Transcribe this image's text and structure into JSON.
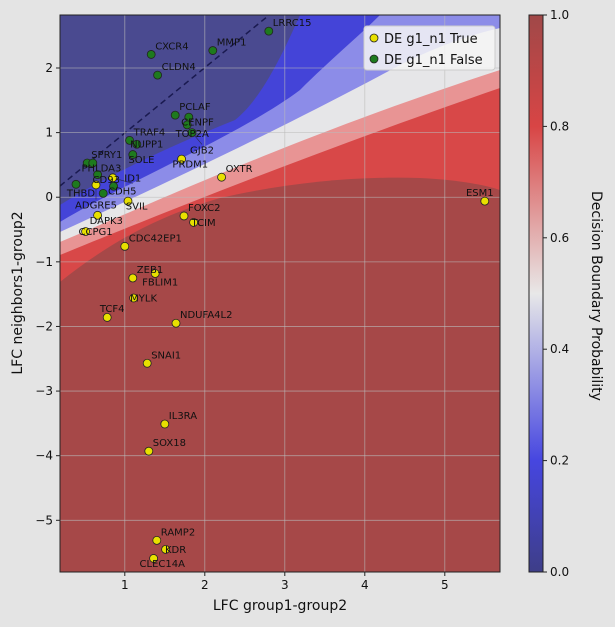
{
  "chart_data": {
    "type": "scatter",
    "xlabel": "LFC group1-group2",
    "ylabel": "LFC neighbors1-group2",
    "xlim": [
      0.19,
      5.69
    ],
    "ylim": [
      -5.8,
      2.82
    ],
    "xticks": [
      1,
      2,
      3,
      4,
      5
    ],
    "yticks": [
      2,
      1,
      0,
      -1,
      -2,
      -3,
      -4,
      -5
    ],
    "grid": true,
    "legend_placement": "top-right",
    "legend": [
      {
        "label": "DE g1_n1 True",
        "color": "#e8e000"
      },
      {
        "label": "DE g1_n1 False",
        "color": "#1e7a1e"
      }
    ],
    "colorbar": {
      "label": "Decision Boundary Probability",
      "range": [
        0.0,
        1.0
      ],
      "ticks": [
        "0.0",
        "0.2",
        "0.4",
        "0.6",
        "0.8",
        "1.0"
      ],
      "colormap": "seismic"
    },
    "points": [
      {
        "label": "LRRC15",
        "x": 2.8,
        "y": 2.57,
        "de": false
      },
      {
        "label": "MMP1",
        "x": 2.1,
        "y": 2.27,
        "de": false
      },
      {
        "label": "CXCR4",
        "x": 1.33,
        "y": 2.21,
        "de": false
      },
      {
        "label": "CLDN4",
        "x": 1.41,
        "y": 1.89,
        "de": false
      },
      {
        "label": "PCLAF",
        "x": 1.63,
        "y": 1.27,
        "de": false
      },
      {
        "label": "CENPF",
        "x": 1.8,
        "y": 1.24,
        "de": false
      },
      {
        "label": "TOP2A",
        "x": 1.78,
        "y": 1.12,
        "de": false
      },
      {
        "label": "GJB2",
        "x": 1.84,
        "y": 1.0,
        "de": false
      },
      {
        "label": "TRAF4",
        "x": 1.06,
        "y": 0.88,
        "de": false
      },
      {
        "label": "NUPP1",
        "x": 1.15,
        "y": 0.82,
        "de": false
      },
      {
        "label": "SOLE",
        "x": 1.1,
        "y": 0.66,
        "de": false
      },
      {
        "label": "PRDM1",
        "x": 1.71,
        "y": 0.59,
        "de": true
      },
      {
        "label": "OXTR",
        "x": 2.21,
        "y": 0.31,
        "de": true
      },
      {
        "label": "ESM1",
        "x": 5.5,
        "y": -0.06,
        "de": true
      },
      {
        "label": "SPRY1",
        "x": 0.53,
        "y": 0.53,
        "de": false
      },
      {
        "label": "PHLDA3",
        "x": 0.6,
        "y": 0.53,
        "de": false
      },
      {
        "label": "CD93",
        "x": 0.66,
        "y": 0.35,
        "de": false
      },
      {
        "label": "THBD",
        "x": 0.39,
        "y": 0.2,
        "de": false
      },
      {
        "label": "ID1",
        "x": 0.85,
        "y": 0.3,
        "de": true
      },
      {
        "label": "CDH5",
        "x": 0.86,
        "y": 0.17,
        "de": false
      },
      {
        "label": "ADGRE5",
        "x": 0.64,
        "y": 0.19,
        "de": true
      },
      {
        "label": "",
        "x": 0.73,
        "y": 0.06,
        "de": false
      },
      {
        "label": "SVIL",
        "x": 1.04,
        "y": -0.06,
        "de": true
      },
      {
        "label": "DAPK3",
        "x": 0.66,
        "y": -0.28,
        "de": true
      },
      {
        "label": "CCPG1",
        "x": 0.51,
        "y": -0.53,
        "de": true
      },
      {
        "label": "FOXC2",
        "x": 1.74,
        "y": -0.29,
        "de": true
      },
      {
        "label": "TCIM",
        "x": 1.86,
        "y": -0.39,
        "de": true
      },
      {
        "label": "CDC42EP1",
        "x": 1.0,
        "y": -0.76,
        "de": true
      },
      {
        "label": "ZEB1",
        "x": 1.1,
        "y": -1.25,
        "de": true
      },
      {
        "label": "FBLIM1",
        "x": 1.38,
        "y": -1.18,
        "de": true
      },
      {
        "label": "MYLK",
        "x": 1.11,
        "y": -1.56,
        "de": true
      },
      {
        "label": "TCF4",
        "x": 0.78,
        "y": -1.86,
        "de": true
      },
      {
        "label": "NDUFA4L2",
        "x": 1.64,
        "y": -1.95,
        "de": true
      },
      {
        "label": "SNAI1",
        "x": 1.28,
        "y": -2.57,
        "de": true
      },
      {
        "label": "IL3RA",
        "x": 1.5,
        "y": -3.51,
        "de": true
      },
      {
        "label": "SOX18",
        "x": 1.3,
        "y": -3.93,
        "de": true
      },
      {
        "label": "RAMP2",
        "x": 1.4,
        "y": -5.31,
        "de": true
      },
      {
        "label": "KDR",
        "x": 1.51,
        "y": -5.45,
        "de": true
      },
      {
        "label": "CLEC14A",
        "x": 1.36,
        "y": -5.59,
        "de": true
      }
    ]
  }
}
